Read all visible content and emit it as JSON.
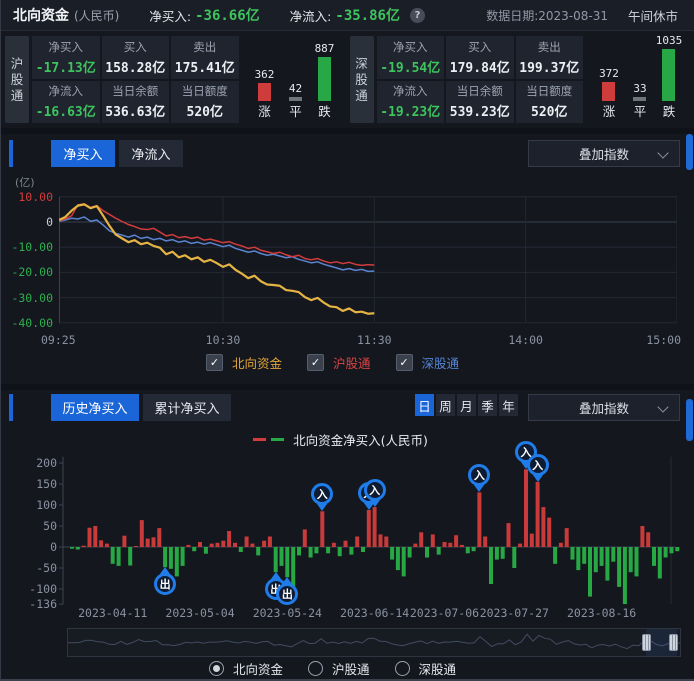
{
  "header": {
    "title": "北向资金",
    "subtitle": "(人民币)",
    "net_buy_label": "净买入:",
    "net_buy_value": "-36.66亿",
    "net_flow_label": "净流入:",
    "net_flow_value": "-35.86亿",
    "help_icon": "?",
    "date_label": "数据日期:2023-08-31",
    "market_status": "午间休市"
  },
  "panels": [
    {
      "tab": "沪股通",
      "stats": [
        {
          "label": "净买入",
          "value": "-17.13亿",
          "green": true
        },
        {
          "label": "买入",
          "value": "158.28亿",
          "green": false
        },
        {
          "label": "卖出",
          "value": "175.41亿",
          "green": false
        },
        {
          "label": "净流入",
          "value": "-16.63亿",
          "green": true
        },
        {
          "label": "当日余额",
          "value": "536.63亿",
          "green": false
        },
        {
          "label": "当日额度",
          "value": "520亿",
          "green": false
        }
      ],
      "updown": {
        "up": 362,
        "flat": 42,
        "down": 887,
        "up_label": "涨",
        "flat_label": "平",
        "down_label": "跌"
      }
    },
    {
      "tab": "深股通",
      "stats": [
        {
          "label": "净买入",
          "value": "-19.54亿",
          "green": true
        },
        {
          "label": "买入",
          "value": "179.84亿",
          "green": false
        },
        {
          "label": "卖出",
          "value": "199.37亿",
          "green": false
        },
        {
          "label": "净流入",
          "value": "-19.23亿",
          "green": true
        },
        {
          "label": "当日余额",
          "value": "539.23亿",
          "green": false
        },
        {
          "label": "当日额度",
          "value": "520亿",
          "green": false
        }
      ],
      "updown": {
        "up": 372,
        "flat": 33,
        "down": 1035,
        "up_label": "涨",
        "flat_label": "平",
        "down_label": "跌"
      }
    }
  ],
  "colors": {
    "up_red": "#cf3c3c",
    "flat_gray": "#6f757e",
    "down_green": "#28a746",
    "accent_blue": "#1a66d9",
    "green_text": "#3ec45e",
    "line_north": "#e6b345",
    "line_sh": "#d23c3c",
    "line_sz": "#5b84d0",
    "bar_pos": "#c93a3a",
    "bar_neg": "#27a845",
    "pin_blue": "#1f7ce8"
  },
  "flow_section": {
    "tabs": [
      "净买入",
      "净流入"
    ],
    "active_tab": 0,
    "overlay_label": "叠加指数",
    "unit_label": "(亿)",
    "check_glyph": "✓",
    "checkboxes": [
      {
        "label": "北向资金",
        "color": "#e0a63a",
        "checked": true
      },
      {
        "label": "沪股通",
        "color": "#d84545",
        "checked": true
      },
      {
        "label": "深股通",
        "color": "#5585d6",
        "checked": true
      }
    ],
    "chart_data": {
      "type": "line",
      "ylabel": "(亿)",
      "y_ticks": [
        10,
        0,
        -10,
        -20,
        -30,
        -40
      ],
      "ylim": [
        -40,
        10
      ],
      "x_ticks": [
        {
          "label": "09:25",
          "minute": 0,
          "align": "left"
        },
        {
          "label": "10:30",
          "minute": 65,
          "align": "center"
        },
        {
          "label": "11:30",
          "minute": 125,
          "align": "center"
        },
        {
          "label": "14:00",
          "minute": 185,
          "align": "center"
        },
        {
          "label": "15:00",
          "minute": 245,
          "align": "right"
        }
      ],
      "x_total_minutes": 245,
      "data_end_minute": 125,
      "grid": true,
      "series": [
        {
          "name": "北向资金",
          "color": "#e6b345",
          "values": [
            0.8,
            2.0,
            4.5,
            6.5,
            7.0,
            5.5,
            6.3,
            2.5,
            -1.5,
            -5.0,
            -6.5,
            -8.0,
            -7.2,
            -8.8,
            -8.2,
            -9.5,
            -10.2,
            -12.8,
            -11.8,
            -14.0,
            -13.2,
            -14.8,
            -14.0,
            -15.8,
            -15.0,
            -16.3,
            -17.8,
            -16.8,
            -19.0,
            -20.5,
            -22.3,
            -21.3,
            -23.5,
            -24.8,
            -25.0,
            -25.3,
            -27.0,
            -27.3,
            -27.8,
            -29.8,
            -31.0,
            -30.1,
            -32.0,
            -33.5,
            -33.8,
            -35.3,
            -34.3,
            -35.8,
            -35.6,
            -36.4,
            -36.2
          ]
        },
        {
          "name": "沪股通",
          "color": "#d23c3c",
          "values": [
            0.5,
            1.2,
            2.5,
            6.8,
            7.2,
            5.8,
            6.5,
            4.5,
            3.0,
            1.5,
            0.2,
            -1.0,
            -1.8,
            -2.8,
            -3.0,
            -2.5,
            -4.0,
            -5.5,
            -5.0,
            -6.2,
            -5.8,
            -6.5,
            -6.0,
            -7.2,
            -6.8,
            -7.5,
            -8.2,
            -7.8,
            -8.8,
            -9.5,
            -10.5,
            -10.0,
            -11.2,
            -11.8,
            -12.5,
            -12.0,
            -13.0,
            -13.8,
            -13.2,
            -14.5,
            -15.0,
            -14.5,
            -15.5,
            -16.2,
            -15.8,
            -16.5,
            -16.0,
            -16.8,
            -17.2,
            -16.9,
            -17.1
          ]
        },
        {
          "name": "深股通",
          "color": "#5b84d0",
          "values": [
            0.3,
            0.8,
            1.5,
            1.2,
            2.0,
            0.3,
            0.8,
            -1.2,
            -3.5,
            -4.5,
            -5.2,
            -6.0,
            -5.2,
            -6.5,
            -6.0,
            -7.0,
            -6.5,
            -7.5,
            -7.0,
            -8.0,
            -7.5,
            -8.5,
            -8.0,
            -8.8,
            -8.2,
            -9.0,
            -9.8,
            -9.2,
            -10.5,
            -11.2,
            -12.0,
            -11.5,
            -12.5,
            -13.2,
            -12.8,
            -13.5,
            -14.2,
            -13.8,
            -14.8,
            -15.5,
            -16.2,
            -15.8,
            -16.8,
            -17.5,
            -18.2,
            -19.0,
            -18.5,
            -19.2,
            -18.8,
            -19.6,
            -19.5
          ]
        }
      ]
    }
  },
  "history_section": {
    "tabs": [
      "历史净买入",
      "累计净买入"
    ],
    "active_tab": 0,
    "period_buttons": [
      "日",
      "周",
      "月",
      "季",
      "年"
    ],
    "active_period": 0,
    "overlay_label": "叠加指数",
    "legend_label": "北向资金净买入(人民币)",
    "marker_labels": {
      "in": "入",
      "out": "出"
    },
    "radios": [
      {
        "label": "北向资金",
        "selected": true
      },
      {
        "label": "沪股通",
        "selected": false
      },
      {
        "label": "深股通",
        "selected": false
      }
    ],
    "chart_data": {
      "type": "bar",
      "title": "北向资金净买入(人民币)",
      "y_ticks": [
        200,
        150,
        100,
        50,
        0,
        -50,
        -100,
        -136
      ],
      "ylim": [
        -136,
        215
      ],
      "x_labels": [
        {
          "text": "2023-04-11",
          "idx": 7
        },
        {
          "text": "2023-05-04",
          "idx": 22
        },
        {
          "text": "2023-05-24",
          "idx": 37
        },
        {
          "text": "2023-06-14",
          "idx": 52
        },
        {
          "text": "2023-07-06",
          "idx": 64
        },
        {
          "text": "2023-07-27",
          "idx": 76
        },
        {
          "text": "2023-08-16",
          "idx": 91
        }
      ],
      "values": [
        -4,
        -6,
        3,
        46,
        50,
        16,
        8,
        -40,
        -45,
        27,
        -44,
        2,
        64,
        20,
        23,
        45,
        -48,
        -52,
        -70,
        -45,
        5,
        -10,
        12,
        -16,
        8,
        10,
        15,
        38,
        10,
        -12,
        25,
        8,
        -20,
        15,
        25,
        -60,
        -45,
        -72,
        -95,
        -20,
        42,
        -25,
        -15,
        85,
        -15,
        10,
        -22,
        15,
        -18,
        25,
        -12,
        88,
        95,
        30,
        25,
        -30,
        -55,
        -70,
        -25,
        8,
        35,
        -25,
        30,
        -18,
        12,
        10,
        28,
        5,
        -15,
        -10,
        130,
        25,
        -88,
        -30,
        -28,
        57,
        -50,
        8,
        185,
        32,
        155,
        95,
        70,
        -40,
        10,
        45,
        -30,
        -55,
        -40,
        -118,
        -60,
        -45,
        -80,
        -35,
        -95,
        -136,
        -60,
        -70,
        50,
        35,
        -45,
        -75,
        -25,
        -15,
        -10
      ],
      "markers": [
        {
          "idx": 16,
          "type": "out"
        },
        {
          "idx": 35,
          "type": "out"
        },
        {
          "idx": 37,
          "type": "out"
        },
        {
          "idx": 43,
          "type": "in"
        },
        {
          "idx": 51,
          "type": "in"
        },
        {
          "idx": 52,
          "type": "in"
        },
        {
          "idx": 70,
          "type": "in"
        },
        {
          "idx": 78,
          "type": "in"
        },
        {
          "idx": 80,
          "type": "in"
        }
      ]
    }
  }
}
